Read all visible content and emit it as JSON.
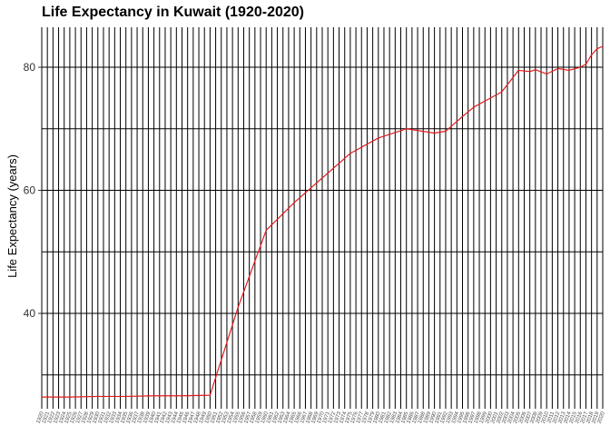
{
  "chart_data": {
    "type": "line",
    "title": "Life Expectancy in Kuwait (1920-2020)",
    "xlabel": "",
    "ylabel": "Life Expectancy (years)",
    "x_range": [
      1920,
      2020
    ],
    "ylim": [
      24.5,
      86.5
    ],
    "y_ticks": [
      40,
      60,
      80
    ],
    "grid": true,
    "line_color": "#e31a1c",
    "grid_color": "#000000",
    "series": [
      {
        "x": [
          1920,
          1925,
          1930,
          1935,
          1940,
          1945,
          1950,
          1955,
          1957,
          1960,
          1965,
          1970,
          1975,
          1980,
          1985,
          1990,
          1992,
          1995,
          1997,
          2000,
          2002,
          2005,
          2007,
          2008,
          2010,
          2012,
          2014,
          2016,
          2017,
          2018,
          2019,
          2020
        ],
        "values": [
          26.4,
          26.4,
          26.5,
          26.5,
          26.6,
          26.6,
          26.7,
          41.0,
          46.0,
          53.5,
          58.0,
          62.0,
          66.0,
          68.5,
          70.0,
          69.3,
          69.6,
          72.0,
          73.5,
          75.0,
          76.0,
          79.5,
          79.3,
          79.6,
          78.9,
          79.8,
          79.5,
          80.0,
          80.5,
          82.0,
          83.0,
          83.4
        ]
      }
    ]
  }
}
